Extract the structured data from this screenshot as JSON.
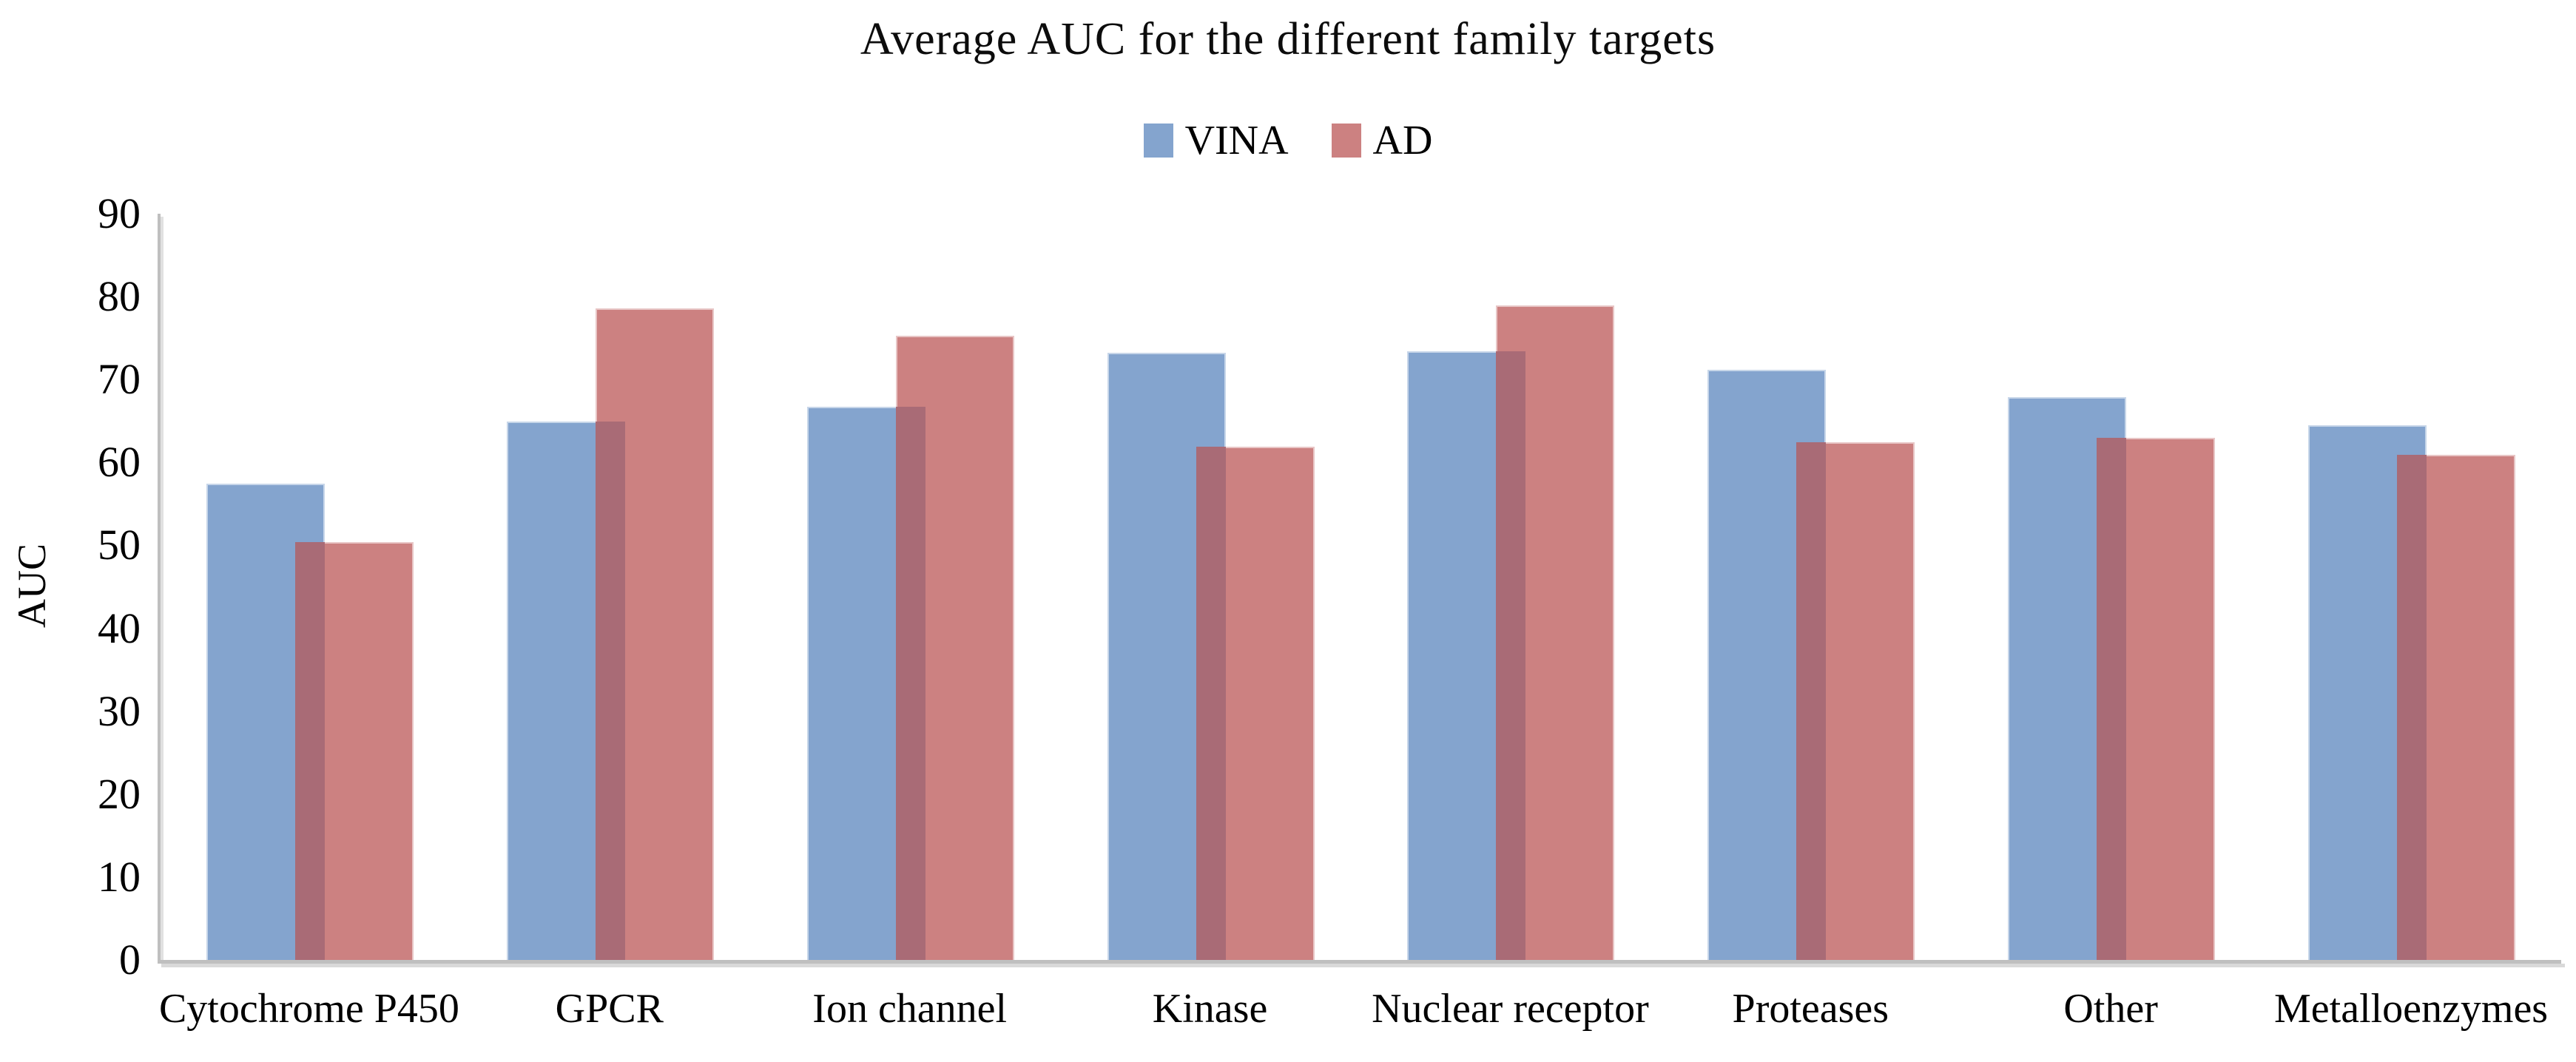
{
  "title": "Average AUC for the different family targets",
  "y_axis_title": "AUC",
  "colors": {
    "vina": "#84A4CE",
    "ad": "#CC8181",
    "overlap": "#A96B76",
    "axis": "#BFBFBF",
    "text": "#000000"
  },
  "chart_data": {
    "type": "bar",
    "title": "Average AUC for the different family targets",
    "xlabel": "",
    "ylabel": "AUC",
    "ylim": [
      0,
      90
    ],
    "yticks": [
      0,
      10,
      20,
      30,
      40,
      50,
      60,
      70,
      80,
      90
    ],
    "grid": false,
    "legend_position": "top",
    "categories": [
      "Cytochrome P450",
      "GPCR",
      "Ion channel",
      "Kinase",
      "Nuclear receptor",
      "Proteases",
      "Other",
      "Metalloenzymes"
    ],
    "series": [
      {
        "name": "VINA",
        "color": "#84A4CE",
        "values": [
          57.4,
          64.9,
          66.7,
          73.2,
          73.4,
          71.2,
          67.9,
          64.5
        ]
      },
      {
        "name": "AD",
        "color": "#CC8181",
        "values": [
          50.4,
          78.6,
          75.3,
          61.9,
          78.9,
          62.4,
          63.0,
          60.9
        ]
      }
    ],
    "overlap_color": "#A96B76"
  }
}
